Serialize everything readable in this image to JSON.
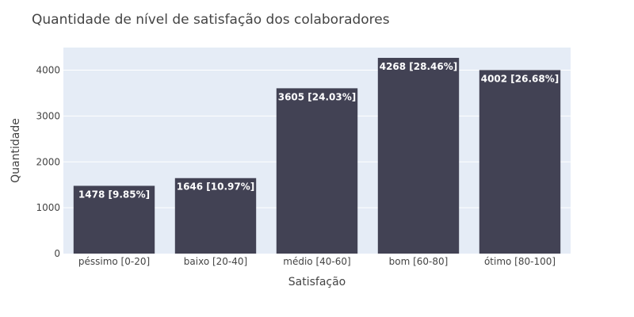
{
  "chart_data": {
    "type": "bar",
    "title": "Quantidade de nível de satisfação dos colaboradores",
    "xlabel": "Satisfação",
    "ylabel": "Quantidade",
    "categories": [
      "péssimo [0-20]",
      "baixo [20-40]",
      "médio [40-60]",
      "bom [60-80]",
      "ótimo [80-100]"
    ],
    "values": [
      1478,
      1646,
      3605,
      4268,
      4002
    ],
    "data_labels": [
      "1478 [9.85%]",
      "1646 [10.97%]",
      "3605 [24.03%]",
      "4268 [28.46%]",
      "4002 [26.68%]"
    ],
    "ylim": [
      0,
      4493
    ],
    "yticks": [
      0,
      1000,
      2000,
      3000,
      4000
    ],
    "grid": true,
    "legend": "none",
    "colors": {
      "bar": "#424254",
      "plot_background": "#E5ECF6",
      "grid": "#ffffff",
      "text": "#444444",
      "label_text": "#ffffff"
    }
  }
}
